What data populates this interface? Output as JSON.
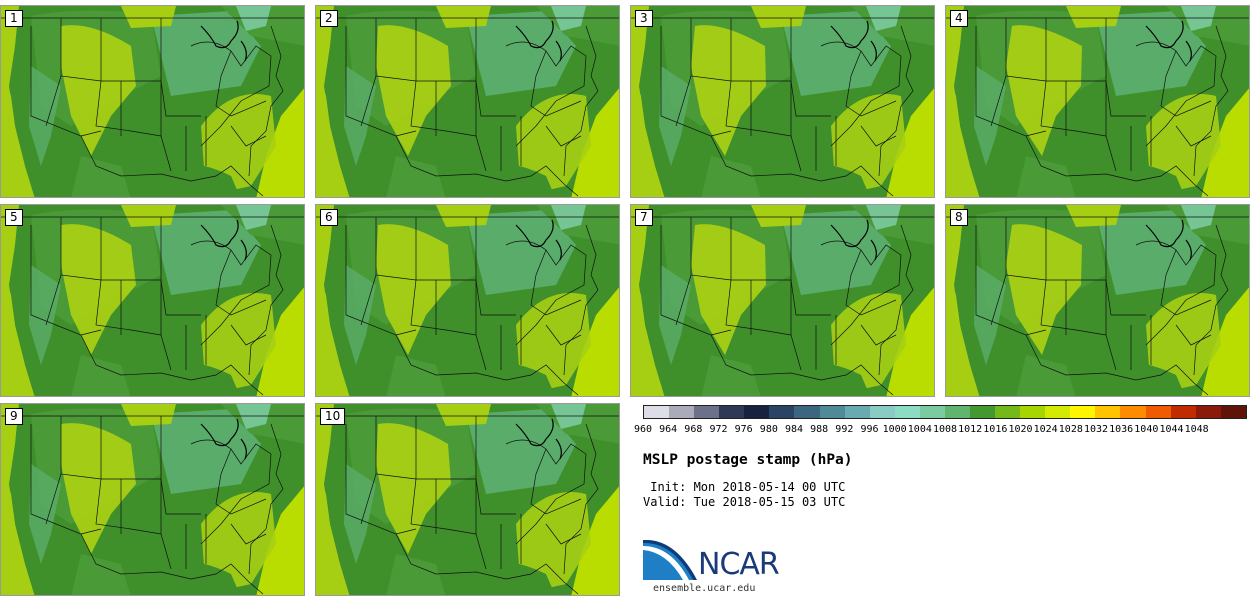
{
  "colors": {
    "ocean": "#9ccc10",
    "land_mid": "#4a9a38",
    "land_high": "#5aac6a",
    "land_low": "#3f8f2b",
    "yellow_green": "#a6cf14",
    "lime": "#b9dd00",
    "teal": "#7fcfac",
    "border": "#111111"
  },
  "members": [
    {
      "label": "1"
    },
    {
      "label": "2"
    },
    {
      "label": "3"
    },
    {
      "label": "4"
    },
    {
      "label": "5"
    },
    {
      "label": "6"
    },
    {
      "label": "7"
    },
    {
      "label": "8"
    },
    {
      "label": "9"
    },
    {
      "label": "10"
    }
  ],
  "colorbar": {
    "ticks": [
      "960",
      "964",
      "968",
      "972",
      "976",
      "980",
      "984",
      "988",
      "992",
      "996",
      "1000",
      "1004",
      "1008",
      "1012",
      "1016",
      "1020",
      "1024",
      "1028",
      "1032",
      "1036",
      "1040",
      "1044",
      "1048"
    ],
    "colors": [
      "#dcdde6",
      "#a9abbb",
      "#6c7089",
      "#2e3a55",
      "#17223f",
      "#2a4466",
      "#3c6680",
      "#4f8a96",
      "#69a9b0",
      "#8bcbc5",
      "#8cdcc4",
      "#7acca0",
      "#5fb56d",
      "#43992f",
      "#74b81a",
      "#a7d500",
      "#d4ea00",
      "#fff500",
      "#ffc300",
      "#ff8c00",
      "#f05a00",
      "#c02c00",
      "#8b1a0a",
      "#5e1408"
    ]
  },
  "title": "MSLP postage stamp (hPa)",
  "init": " Init: Mon 2018-05-14 00 UTC",
  "valid": "Valid: Tue 2018-05-15 03 UTC",
  "logo": {
    "text": "NCAR",
    "url": "ensemble.ucar.edu"
  }
}
